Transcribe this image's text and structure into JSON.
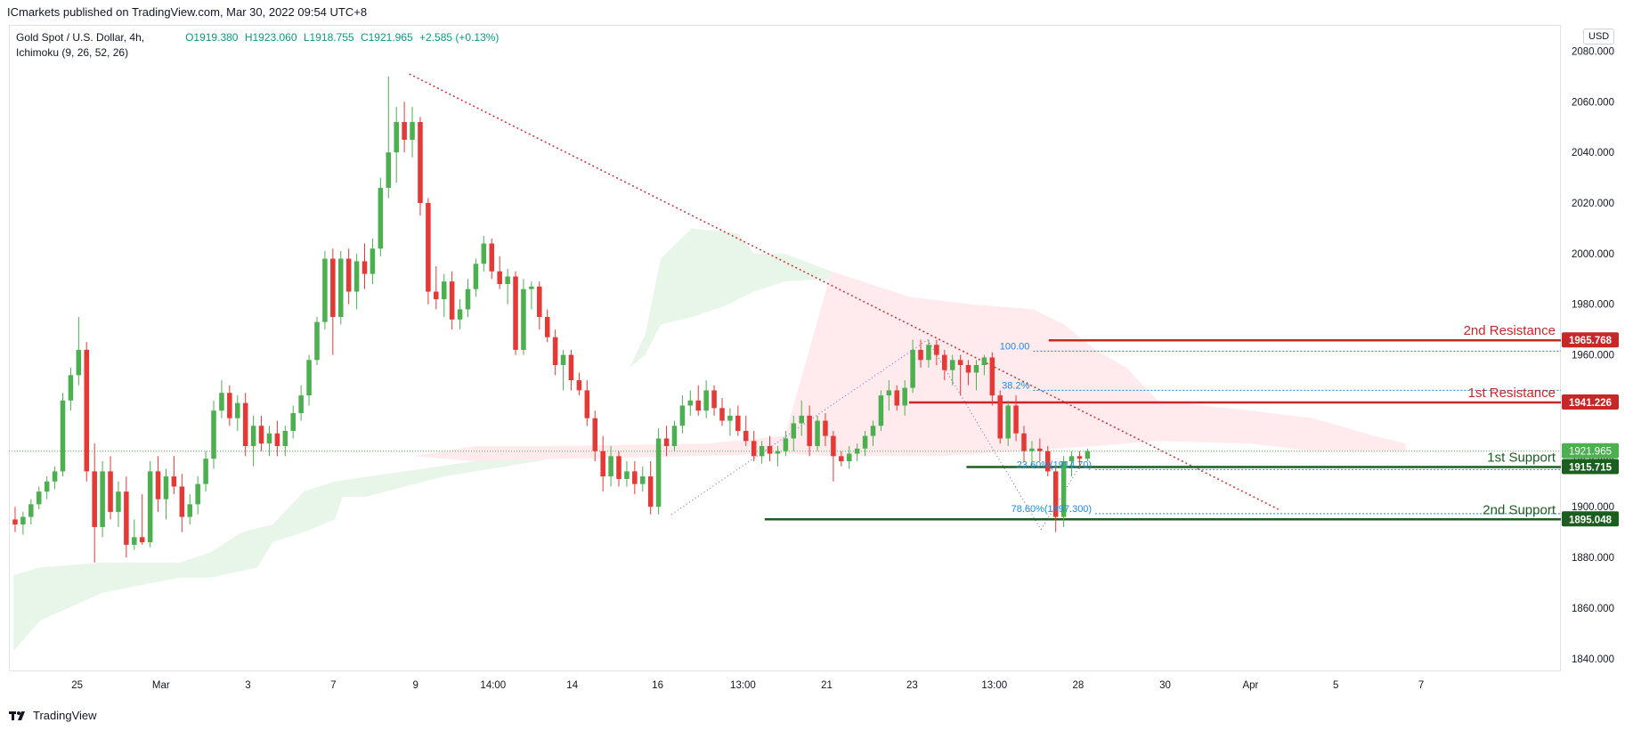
{
  "header": {
    "published": "ICmarkets published on TradingView.com, Mar 30, 2022 09:54 UTC+8"
  },
  "legend": {
    "symbol": "Gold Spot / U.S. Dollar, 4h,",
    "indicator": "Ichimoku (9, 26, 52, 26)",
    "open": "O1919.380",
    "high": "H1923.060",
    "low": "L1918.755",
    "close": "C1921.965",
    "change": "+2.585 (+0.13%)"
  },
  "currency": "USD",
  "footer": {
    "brand": "TradingView"
  },
  "colors": {
    "up": "#4caf50",
    "down": "#e53935",
    "resistance": "#c62828",
    "support": "#1b5e20",
    "fib": "#1e88e5",
    "cloud_green": "#e8f5e9",
    "cloud_red": "#ffebee"
  },
  "chart_data": {
    "type": "candlestick",
    "ylim": [
      1835,
      2090
    ],
    "y_ticks": [
      1840,
      1860,
      1880,
      1900,
      1920,
      1940,
      1960,
      1980,
      2000,
      2020,
      2040,
      2060,
      2080
    ],
    "x_ticks": [
      "25",
      "Mar",
      "3",
      "7",
      "9",
      "14:00",
      "14",
      "16",
      "13:00",
      "21",
      "23",
      "13:00",
      "28",
      "30",
      "Apr",
      "5",
      "7"
    ],
    "candles": [
      {
        "o": 1895,
        "h": 1900,
        "l": 1890,
        "c": 1893
      },
      {
        "o": 1893,
        "h": 1898,
        "l": 1889,
        "c": 1896
      },
      {
        "o": 1896,
        "h": 1903,
        "l": 1893,
        "c": 1901
      },
      {
        "o": 1901,
        "h": 1908,
        "l": 1899,
        "c": 1906
      },
      {
        "o": 1906,
        "h": 1912,
        "l": 1903,
        "c": 1910
      },
      {
        "o": 1910,
        "h": 1916,
        "l": 1907,
        "c": 1914
      },
      {
        "o": 1914,
        "h": 1945,
        "l": 1912,
        "c": 1942
      },
      {
        "o": 1942,
        "h": 1955,
        "l": 1938,
        "c": 1952
      },
      {
        "o": 1952,
        "h": 1975,
        "l": 1948,
        "c": 1962
      },
      {
        "o": 1962,
        "h": 1965,
        "l": 1910,
        "c": 1914
      },
      {
        "o": 1914,
        "h": 1925,
        "l": 1878,
        "c": 1892
      },
      {
        "o": 1892,
        "h": 1918,
        "l": 1888,
        "c": 1914
      },
      {
        "o": 1914,
        "h": 1920,
        "l": 1895,
        "c": 1898
      },
      {
        "o": 1898,
        "h": 1910,
        "l": 1892,
        "c": 1906
      },
      {
        "o": 1906,
        "h": 1912,
        "l": 1880,
        "c": 1885
      },
      {
        "o": 1885,
        "h": 1895,
        "l": 1883,
        "c": 1888
      },
      {
        "o": 1888,
        "h": 1905,
        "l": 1885,
        "c": 1886
      },
      {
        "o": 1886,
        "h": 1918,
        "l": 1884,
        "c": 1914
      },
      {
        "o": 1914,
        "h": 1920,
        "l": 1898,
        "c": 1903
      },
      {
        "o": 1903,
        "h": 1915,
        "l": 1895,
        "c": 1912
      },
      {
        "o": 1912,
        "h": 1920,
        "l": 1905,
        "c": 1908
      },
      {
        "o": 1908,
        "h": 1913,
        "l": 1890,
        "c": 1896
      },
      {
        "o": 1896,
        "h": 1905,
        "l": 1893,
        "c": 1901
      },
      {
        "o": 1901,
        "h": 1912,
        "l": 1897,
        "c": 1909
      },
      {
        "o": 1909,
        "h": 1922,
        "l": 1906,
        "c": 1919
      },
      {
        "o": 1919,
        "h": 1942,
        "l": 1915,
        "c": 1938
      },
      {
        "o": 1938,
        "h": 1950,
        "l": 1935,
        "c": 1945
      },
      {
        "o": 1945,
        "h": 1948,
        "l": 1932,
        "c": 1935
      },
      {
        "o": 1935,
        "h": 1944,
        "l": 1930,
        "c": 1941
      },
      {
        "o": 1941,
        "h": 1945,
        "l": 1920,
        "c": 1924
      },
      {
        "o": 1924,
        "h": 1936,
        "l": 1916,
        "c": 1932
      },
      {
        "o": 1932,
        "h": 1936,
        "l": 1922,
        "c": 1925
      },
      {
        "o": 1925,
        "h": 1932,
        "l": 1920,
        "c": 1929
      },
      {
        "o": 1929,
        "h": 1934,
        "l": 1920,
        "c": 1924
      },
      {
        "o": 1924,
        "h": 1932,
        "l": 1920,
        "c": 1930
      },
      {
        "o": 1930,
        "h": 1940,
        "l": 1927,
        "c": 1937
      },
      {
        "o": 1937,
        "h": 1948,
        "l": 1934,
        "c": 1944
      },
      {
        "o": 1944,
        "h": 1960,
        "l": 1940,
        "c": 1958
      },
      {
        "o": 1958,
        "h": 1975,
        "l": 1956,
        "c": 1973
      },
      {
        "o": 1973,
        "h": 2001,
        "l": 1970,
        "c": 1998
      },
      {
        "o": 1998,
        "h": 2002,
        "l": 1960,
        "c": 1975
      },
      {
        "o": 1975,
        "h": 2001,
        "l": 1972,
        "c": 1998
      },
      {
        "o": 1998,
        "h": 2002,
        "l": 1980,
        "c": 1985
      },
      {
        "o": 1985,
        "h": 2000,
        "l": 1978,
        "c": 1997
      },
      {
        "o": 1997,
        "h": 2004,
        "l": 1986,
        "c": 1992
      },
      {
        "o": 1992,
        "h": 2006,
        "l": 1988,
        "c": 2002
      },
      {
        "o": 2002,
        "h": 2030,
        "l": 1999,
        "c": 2026
      },
      {
        "o": 2026,
        "h": 2070,
        "l": 2022,
        "c": 2040
      },
      {
        "o": 2040,
        "h": 2058,
        "l": 2028,
        "c": 2052
      },
      {
        "o": 2052,
        "h": 2060,
        "l": 2040,
        "c": 2045
      },
      {
        "o": 2045,
        "h": 2058,
        "l": 2038,
        "c": 2052
      },
      {
        "o": 2052,
        "h": 2054,
        "l": 2015,
        "c": 2020
      },
      {
        "o": 2020,
        "h": 2022,
        "l": 1980,
        "c": 1985
      },
      {
        "o": 1985,
        "h": 1995,
        "l": 1978,
        "c": 1982
      },
      {
        "o": 1982,
        "h": 1992,
        "l": 1975,
        "c": 1989
      },
      {
        "o": 1989,
        "h": 1993,
        "l": 1970,
        "c": 1974
      },
      {
        "o": 1974,
        "h": 1982,
        "l": 1970,
        "c": 1978
      },
      {
        "o": 1978,
        "h": 1990,
        "l": 1975,
        "c": 1986
      },
      {
        "o": 1986,
        "h": 1998,
        "l": 1983,
        "c": 1996
      },
      {
        "o": 1996,
        "h": 2007,
        "l": 1993,
        "c": 2004
      },
      {
        "o": 2004,
        "h": 2006,
        "l": 1990,
        "c": 1993
      },
      {
        "o": 1993,
        "h": 1999,
        "l": 1986,
        "c": 1988
      },
      {
        "o": 1988,
        "h": 1994,
        "l": 1980,
        "c": 1991
      },
      {
        "o": 1991,
        "h": 1993,
        "l": 1960,
        "c": 1962
      },
      {
        "o": 1962,
        "h": 1990,
        "l": 1960,
        "c": 1986
      },
      {
        "o": 1986,
        "h": 1989,
        "l": 1978,
        "c": 1987
      },
      {
        "o": 1987,
        "h": 1989,
        "l": 1970,
        "c": 1975
      },
      {
        "o": 1975,
        "h": 1978,
        "l": 1965,
        "c": 1967
      },
      {
        "o": 1967,
        "h": 1970,
        "l": 1952,
        "c": 1956
      },
      {
        "o": 1956,
        "h": 1962,
        "l": 1946,
        "c": 1960
      },
      {
        "o": 1960,
        "h": 1962,
        "l": 1946,
        "c": 1950
      },
      {
        "o": 1950,
        "h": 1953,
        "l": 1944,
        "c": 1946
      },
      {
        "o": 1946,
        "h": 1950,
        "l": 1932,
        "c": 1935
      },
      {
        "o": 1935,
        "h": 1938,
        "l": 1918,
        "c": 1922
      },
      {
        "o": 1922,
        "h": 1928,
        "l": 1906,
        "c": 1912
      },
      {
        "o": 1912,
        "h": 1924,
        "l": 1908,
        "c": 1920
      },
      {
        "o": 1920,
        "h": 1922,
        "l": 1908,
        "c": 1911
      },
      {
        "o": 1911,
        "h": 1918,
        "l": 1908,
        "c": 1914
      },
      {
        "o": 1914,
        "h": 1918,
        "l": 1905,
        "c": 1909
      },
      {
        "o": 1909,
        "h": 1916,
        "l": 1906,
        "c": 1912
      },
      {
        "o": 1912,
        "h": 1918,
        "l": 1897,
        "c": 1900
      },
      {
        "o": 1900,
        "h": 1931,
        "l": 1897,
        "c": 1927
      },
      {
        "o": 1927,
        "h": 1932,
        "l": 1920,
        "c": 1924
      },
      {
        "o": 1924,
        "h": 1934,
        "l": 1922,
        "c": 1932
      },
      {
        "o": 1932,
        "h": 1944,
        "l": 1929,
        "c": 1940
      },
      {
        "o": 1940,
        "h": 1946,
        "l": 1936,
        "c": 1942
      },
      {
        "o": 1942,
        "h": 1948,
        "l": 1936,
        "c": 1938
      },
      {
        "o": 1938,
        "h": 1950,
        "l": 1935,
        "c": 1946
      },
      {
        "o": 1946,
        "h": 1948,
        "l": 1936,
        "c": 1939
      },
      {
        "o": 1939,
        "h": 1943,
        "l": 1932,
        "c": 1934
      },
      {
        "o": 1934,
        "h": 1939,
        "l": 1928,
        "c": 1936
      },
      {
        "o": 1936,
        "h": 1940,
        "l": 1928,
        "c": 1930
      },
      {
        "o": 1930,
        "h": 1936,
        "l": 1924,
        "c": 1926
      },
      {
        "o": 1926,
        "h": 1930,
        "l": 1918,
        "c": 1920
      },
      {
        "o": 1920,
        "h": 1926,
        "l": 1917,
        "c": 1924
      },
      {
        "o": 1924,
        "h": 1928,
        "l": 1918,
        "c": 1921
      },
      {
        "o": 1921,
        "h": 1924,
        "l": 1916,
        "c": 1922
      },
      {
        "o": 1922,
        "h": 1930,
        "l": 1920,
        "c": 1927
      },
      {
        "o": 1927,
        "h": 1936,
        "l": 1922,
        "c": 1933
      },
      {
        "o": 1933,
        "h": 1942,
        "l": 1928,
        "c": 1936
      },
      {
        "o": 1936,
        "h": 1940,
        "l": 1920,
        "c": 1924
      },
      {
        "o": 1924,
        "h": 1936,
        "l": 1922,
        "c": 1934
      },
      {
        "o": 1934,
        "h": 1937,
        "l": 1924,
        "c": 1928
      },
      {
        "o": 1928,
        "h": 1930,
        "l": 1910,
        "c": 1920
      },
      {
        "o": 1920,
        "h": 1922,
        "l": 1916,
        "c": 1918
      },
      {
        "o": 1918,
        "h": 1924,
        "l": 1915,
        "c": 1921
      },
      {
        "o": 1921,
        "h": 1925,
        "l": 1918,
        "c": 1923
      },
      {
        "o": 1923,
        "h": 1930,
        "l": 1920,
        "c": 1928
      },
      {
        "o": 1928,
        "h": 1934,
        "l": 1924,
        "c": 1932
      },
      {
        "o": 1932,
        "h": 1946,
        "l": 1930,
        "c": 1944
      },
      {
        "o": 1944,
        "h": 1950,
        "l": 1938,
        "c": 1946
      },
      {
        "o": 1946,
        "h": 1948,
        "l": 1938,
        "c": 1940
      },
      {
        "o": 1940,
        "h": 1950,
        "l": 1936,
        "c": 1947
      },
      {
        "o": 1947,
        "h": 1966,
        "l": 1945,
        "c": 1962
      },
      {
        "o": 1962,
        "h": 1966,
        "l": 1955,
        "c": 1958
      },
      {
        "o": 1958,
        "h": 1966,
        "l": 1955,
        "c": 1964
      },
      {
        "o": 1964,
        "h": 1966,
        "l": 1956,
        "c": 1960
      },
      {
        "o": 1960,
        "h": 1962,
        "l": 1950,
        "c": 1954
      },
      {
        "o": 1954,
        "h": 1960,
        "l": 1948,
        "c": 1958
      },
      {
        "o": 1958,
        "h": 1960,
        "l": 1944,
        "c": 1956
      },
      {
        "o": 1956,
        "h": 1958,
        "l": 1948,
        "c": 1953
      },
      {
        "o": 1953,
        "h": 1958,
        "l": 1946,
        "c": 1956
      },
      {
        "o": 1956,
        "h": 1960,
        "l": 1952,
        "c": 1959
      },
      {
        "o": 1959,
        "h": 1961,
        "l": 1940,
        "c": 1944
      },
      {
        "o": 1944,
        "h": 1946,
        "l": 1925,
        "c": 1927
      },
      {
        "o": 1927,
        "h": 1942,
        "l": 1924,
        "c": 1940
      },
      {
        "o": 1940,
        "h": 1944,
        "l": 1926,
        "c": 1929
      },
      {
        "o": 1929,
        "h": 1932,
        "l": 1918,
        "c": 1922
      },
      {
        "o": 1922,
        "h": 1926,
        "l": 1916,
        "c": 1923
      },
      {
        "o": 1923,
        "h": 1927,
        "l": 1918,
        "c": 1922
      },
      {
        "o": 1922,
        "h": 1924,
        "l": 1912,
        "c": 1914
      },
      {
        "o": 1914,
        "h": 1916,
        "l": 1890,
        "c": 1896
      },
      {
        "o": 1896,
        "h": 1920,
        "l": 1892,
        "c": 1918
      },
      {
        "o": 1918,
        "h": 1922,
        "l": 1912,
        "c": 1920
      },
      {
        "o": 1920,
        "h": 1922,
        "l": 1915,
        "c": 1919
      },
      {
        "o": 1919,
        "h": 1923,
        "l": 1918,
        "c": 1922
      }
    ],
    "cloud_green": [
      [
        0.003,
        1843
      ],
      [
        0.02,
        1855
      ],
      [
        0.06,
        1866
      ],
      [
        0.11,
        1872
      ],
      [
        0.13,
        1872
      ],
      [
        0.16,
        1876
      ],
      [
        0.17,
        1886
      ],
      [
        0.19,
        1890
      ],
      [
        0.21,
        1895
      ],
      [
        0.215,
        1904
      ],
      [
        0.23,
        1904
      ],
      [
        0.28,
        1912
      ],
      [
        0.32,
        1916
      ],
      [
        0.36,
        1920
      ],
      [
        0.37,
        1925
      ],
      [
        0.38,
        1935
      ],
      [
        0.4,
        1955
      ],
      [
        0.41,
        1968
      ],
      [
        0.42,
        1998
      ],
      [
        0.44,
        2010
      ],
      [
        0.47,
        2008
      ],
      [
        0.48,
        2000
      ],
      [
        0.5,
        2000
      ],
      [
        0.53,
        1993
      ],
      [
        0.53,
        1990
      ],
      [
        0.5,
        1989
      ],
      [
        0.48,
        1985
      ],
      [
        0.46,
        1979
      ],
      [
        0.44,
        1975
      ],
      [
        0.42,
        1972
      ],
      [
        0.41,
        1960
      ],
      [
        0.4,
        1955
      ],
      [
        0.38,
        1935
      ],
      [
        0.37,
        1925
      ],
      [
        0.36,
        1920
      ],
      [
        0.3,
        1918
      ],
      [
        0.21,
        1910
      ],
      [
        0.19,
        1906
      ],
      [
        0.17,
        1893
      ],
      [
        0.15,
        1890
      ],
      [
        0.13,
        1882
      ],
      [
        0.11,
        1878
      ],
      [
        0.06,
        1878
      ],
      [
        0.02,
        1876
      ],
      [
        0.003,
        1873
      ]
    ],
    "cloud_red": [
      [
        0.26,
        1920
      ],
      [
        0.3,
        1924
      ],
      [
        0.35,
        1924
      ],
      [
        0.45,
        1925
      ],
      [
        0.5,
        1928
      ],
      [
        0.53,
        1993
      ],
      [
        0.56,
        1987
      ],
      [
        0.58,
        1983
      ],
      [
        0.62,
        1980
      ],
      [
        0.66,
        1978
      ],
      [
        0.68,
        1972
      ],
      [
        0.7,
        1962
      ],
      [
        0.72,
        1955
      ],
      [
        0.74,
        1942
      ],
      [
        0.8,
        1938
      ],
      [
        0.84,
        1935
      ],
      [
        0.88,
        1928
      ],
      [
        0.9,
        1925
      ],
      [
        0.9,
        1922
      ],
      [
        0.84,
        1922
      ],
      [
        0.8,
        1925
      ],
      [
        0.74,
        1926
      ],
      [
        0.7,
        1924
      ],
      [
        0.6,
        1920
      ],
      [
        0.53,
        1920
      ],
      [
        0.5,
        1921
      ],
      [
        0.44,
        1920
      ],
      [
        0.36,
        1919
      ],
      [
        0.3,
        1918
      ]
    ],
    "levels": [
      {
        "name": "2nd Resistance",
        "value": 1965.768,
        "label": "1965.768",
        "type": "resistance",
        "x_start": 0.67
      },
      {
        "name": "1st Resistance",
        "value": 1941.226,
        "label": "1941.226",
        "type": "resistance",
        "x_start": 0.58
      },
      {
        "name": "1st Support",
        "value": 1915.715,
        "label": "1915.715",
        "type": "support",
        "x_start": 0.617
      },
      {
        "name": "2nd Support",
        "value": 1895.048,
        "label": "1895.048",
        "type": "support",
        "x_start": 0.487
      }
    ],
    "current_price": {
      "value": 1921.965,
      "label": "1921.965"
    },
    "fib_lines": [
      {
        "label": "100.00",
        "value": 1961.5,
        "x_start": 0.66
      },
      {
        "label": "38.2%",
        "value": 1946.0,
        "x_start": 0.66
      },
      {
        "label": "23.60%(1914.70)",
        "value": 1914.7,
        "x_start": 0.7
      },
      {
        "label": "78.60%(1897.300)",
        "value": 1897.3,
        "x_start": 0.7
      }
    ]
  }
}
